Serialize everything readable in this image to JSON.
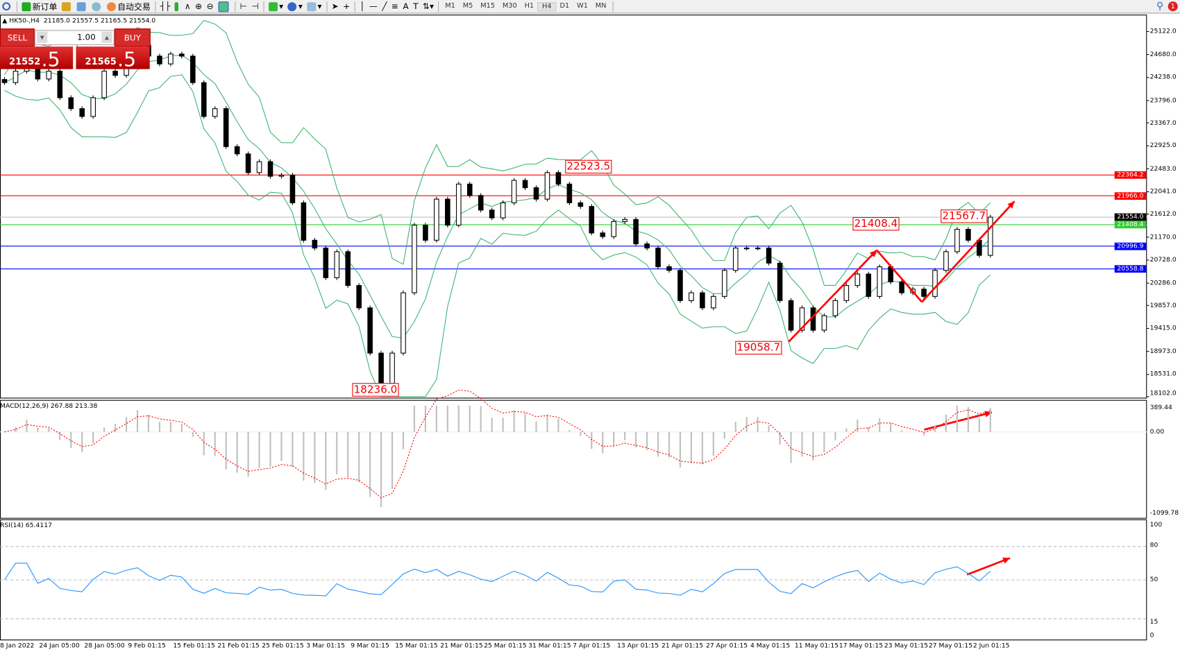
{
  "toolbar": {
    "new_order": "新订单",
    "auto_trading": "自动交易",
    "timeframes": [
      "M1",
      "M5",
      "M15",
      "M30",
      "H1",
      "H4",
      "D1",
      "W1",
      "MN"
    ],
    "active_timeframe": "H4",
    "notification_count": "1",
    "icons": [
      "search-icon",
      "new-order-icon",
      "gold-icon",
      "history-icon",
      "signal-icon",
      "auto-trading-icon",
      "bar-chart-icon",
      "candlestick-icon",
      "line-chart-icon",
      "zoom-in-icon",
      "zoom-out-icon",
      "tile-windows-icon",
      "chart-shift-icon",
      "autoscroll-icon",
      "indicators-icon",
      "periods-icon",
      "templates-icon",
      "cursor-icon",
      "crosshair-icon",
      "vertical-line-icon",
      "horizontal-line-icon",
      "trendline-icon",
      "fibonacci-icon",
      "text-icon",
      "text-label-icon",
      "arrows-icon"
    ]
  },
  "symbol_info": {
    "symbol": "HK50-,H4",
    "open": "21185.0",
    "high": "21557.5",
    "low": "21165.5",
    "close": "21554.0"
  },
  "trade_panel": {
    "sell_label": "SELL",
    "buy_label": "BUY",
    "lot": "1.00",
    "sell_price_main": "21552",
    "sell_price_frac": ".5",
    "buy_price_main": "21565",
    "buy_price_frac": ".5"
  },
  "price_axis": [
    "25122.0",
    "24680.0",
    "24238.0",
    "23796.0",
    "23367.0",
    "22925.0",
    "22483.0",
    "22041.0",
    "21612.0",
    "21170.0",
    "20728.0",
    "20286.0",
    "19857.0",
    "19415.0",
    "18973.0",
    "18531.0",
    "18102.0"
  ],
  "horizontal_lines": [
    {
      "price": "22364.2",
      "color": "#ff0000"
    },
    {
      "price": "21966.0",
      "color": "#ff0000"
    },
    {
      "price": "21554.0",
      "color": "#000000",
      "line": "#c0c0c0"
    },
    {
      "price": "21408.4",
      "color": "#32cd32"
    },
    {
      "price": "20996.9",
      "color": "#0000ff"
    },
    {
      "price": "20558.8",
      "color": "#0000ff"
    }
  ],
  "annotations": [
    "22523.5",
    "21408.4",
    "21567.7",
    "19058.7",
    "18236.0"
  ],
  "macd": {
    "label": "MACD(12,26,9) 267.88 213.38",
    "axis": [
      "389.44",
      "0.00",
      "-1099.78"
    ]
  },
  "rsi": {
    "label": "RSI(14) 65.4117",
    "axis": [
      "100",
      "80",
      "50",
      "15",
      "0"
    ]
  },
  "time_axis": [
    "8 Jan 2022",
    "24 Jan 05:00",
    "28 Jan 05:00",
    "9 Feb 01:15",
    "15 Feb 01:15",
    "21 Feb 01:15",
    "25 Feb 01:15",
    "3 Mar 01:15",
    "9 Mar 01:15",
    "15 Mar 01:15",
    "21 Mar 01:15",
    "25 Mar 01:15",
    "31 Mar 01:15",
    "7 Apr 01:15",
    "13 Apr 01:15",
    "21 Apr 01:15",
    "27 Apr 01:15",
    "4 May 01:15",
    "11 May 01:15",
    "17 May 01:15",
    "23 May 01:15",
    "27 May 01:15",
    "2 Jun 01:15"
  ],
  "colors": {
    "bands": "#3cb371",
    "macd_hist": "#c0c0c0",
    "macd_signal": "#ff0000",
    "rsi": "#1e90ff",
    "arrows": "#ff0000"
  },
  "chart_data": {
    "type": "candlestick",
    "symbol": "HK50-",
    "timeframe": "H4",
    "ylim": [
      18102,
      25122
    ],
    "indicators": [
      "Bollinger Bands",
      "MACD(12,26,9)",
      "RSI(14)"
    ],
    "closes": [
      24140,
      24360,
      24645,
      24210,
      24360,
      23850,
      23640,
      23490,
      23850,
      24360,
      24280,
      24570,
      24860,
      24650,
      24500,
      24690,
      24650,
      24140,
      23490,
      23640,
      22910,
      22770,
      22410,
      22620,
      22340,
      22360,
      21830,
      21110,
      20960,
      20390,
      20890,
      20240,
      19810,
      18940,
      18360,
      18940,
      20100,
      21400,
      21110,
      21900,
      21400,
      22190,
      21970,
      21690,
      21540,
      21830,
      22260,
      22120,
      21900,
      22410,
      22190,
      21830,
      21760,
      21250,
      21180,
      21470,
      21510,
      21040,
      20960,
      20600,
      20530,
      19950,
      20100,
      19810,
      20030,
      20530,
      20960,
      20960,
      20960,
      20670,
      19950,
      19380,
      19810,
      19380,
      19660,
      19950,
      20240,
      20460,
      20030,
      20600,
      20310,
      20100,
      20170,
      20030,
      20530,
      20890,
      21320,
      21110,
      20820,
      21554
    ]
  }
}
